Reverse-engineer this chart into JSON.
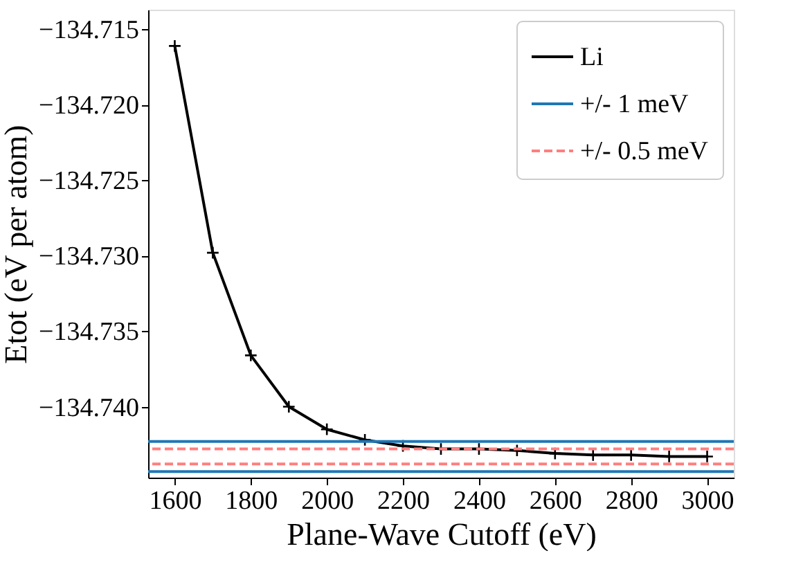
{
  "chart_data": {
    "type": "line",
    "xlabel": "Plane-Wave Cutoff (eV)",
    "ylabel": "Etot (eV per atom)",
    "x": [
      1600,
      1700,
      1800,
      1900,
      2000,
      2100,
      2200,
      2300,
      2400,
      2500,
      2600,
      2700,
      2800,
      2900,
      3000
    ],
    "series": [
      {
        "name": "Li",
        "color": "#000000",
        "values": [
          -134.7161,
          -134.7298,
          -134.7366,
          -134.74,
          -134.7415,
          -134.7422,
          -134.7426,
          -134.7428,
          -134.7428,
          -134.7429,
          -134.7431,
          -134.7432,
          -134.7432,
          -134.7433,
          -134.7433
        ]
      }
    ],
    "ref_lines": [
      {
        "axis": "y",
        "value": -134.7423,
        "label": "+/- 1 meV",
        "color": "#1f77b4",
        "line_style": "solid"
      },
      {
        "axis": "y",
        "value": -134.7443,
        "color": "#1f77b4",
        "line_style": "solid"
      },
      {
        "axis": "y",
        "value": -134.7428,
        "label": "+/- 0.5 meV",
        "color": "#ff7f7f",
        "line_style": "dashed"
      },
      {
        "axis": "y",
        "value": -134.7438,
        "color": "#ff7f7f",
        "line_style": "dashed"
      }
    ],
    "xlim": [
      1530,
      3070
    ],
    "xticks": [
      1600,
      1800,
      2000,
      2200,
      2400,
      2600,
      2800,
      3000
    ],
    "ylim": [
      -134.7447,
      -134.7137
    ],
    "yticks": [
      {
        "value": -134.74,
        "label": "−134.740"
      },
      -134.735,
      {
        "value": -134.73,
        "label": "−134.730"
      },
      -134.725,
      {
        "value": -134.72,
        "label": "−134.720"
      },
      -134.715
    ],
    "marker": "cross",
    "line_style": "solid",
    "grid": false,
    "legend": "top right"
  }
}
